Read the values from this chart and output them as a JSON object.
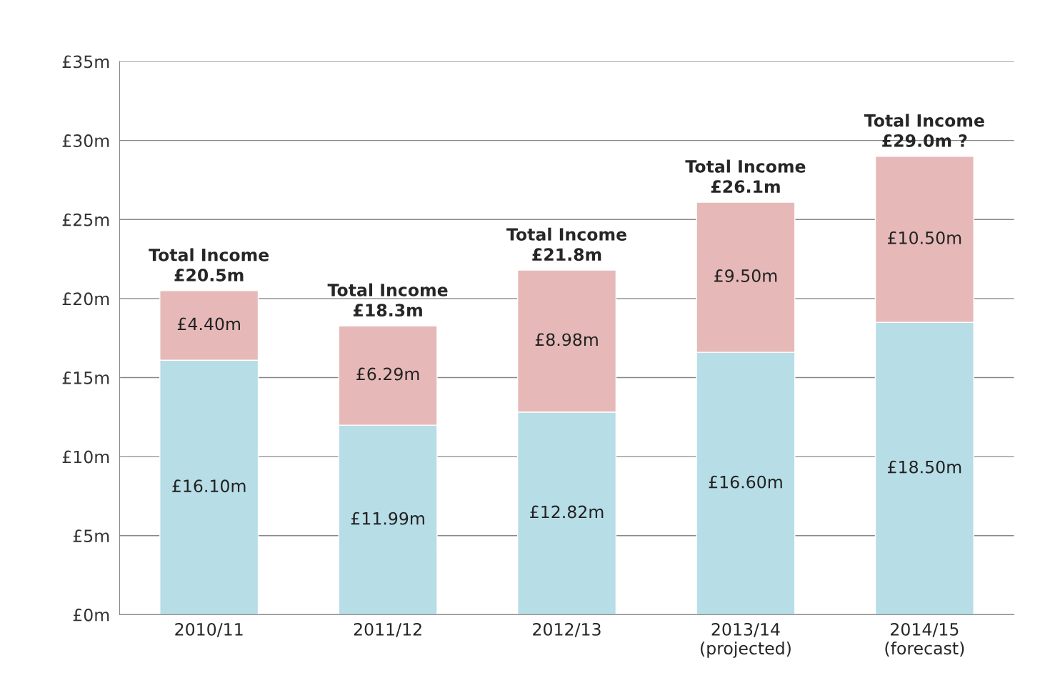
{
  "chart_data": {
    "type": "bar",
    "stacked": true,
    "categories": [
      "2010/11",
      "2011/12",
      "2012/13",
      "2013/14\n(projected)",
      "2014/15\n(forecast)"
    ],
    "series": [
      {
        "color": "#b7dde6",
        "values": [
          16.1,
          11.99,
          12.82,
          16.6,
          18.5
        ],
        "value_labels": [
          "£16.10m",
          "£11.99m",
          "£12.82m",
          "£16.60m",
          "£18.50m"
        ]
      },
      {
        "color": "#e6b9b8",
        "values": [
          4.4,
          6.29,
          8.98,
          9.5,
          10.5
        ],
        "value_labels": [
          "£4.40m",
          "£6.29m",
          "£8.98m",
          "£9.50m",
          "£10.50m"
        ]
      }
    ],
    "totals": [
      "Total Income\n£20.5m",
      "Total Income\n£18.3m",
      "Total Income\n£21.8m",
      "Total Income\n£26.1m",
      "Total Income\n£29.0m ?"
    ],
    "ylim": [
      0,
      35
    ],
    "yticks": [
      {
        "value": 0,
        "label": "£0m"
      },
      {
        "value": 5,
        "label": "£5m"
      },
      {
        "value": 10,
        "label": "£10m"
      },
      {
        "value": 15,
        "label": "£15m"
      },
      {
        "value": 20,
        "label": "£20m"
      },
      {
        "value": 25,
        "label": "£25m"
      },
      {
        "value": 30,
        "label": "£30m"
      },
      {
        "value": 35,
        "label": "£35m"
      }
    ],
    "grid": "y",
    "legend": false
  }
}
